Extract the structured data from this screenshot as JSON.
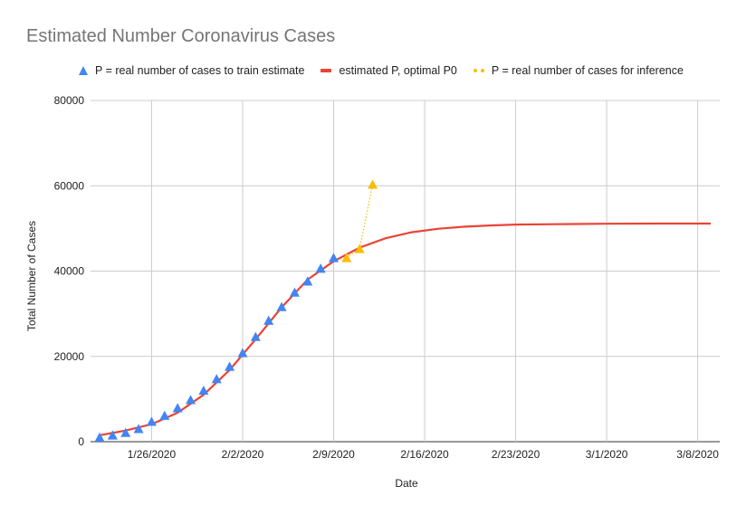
{
  "chart_data": {
    "type": "line",
    "title": "Estimated Number Coronavirus Cases",
    "xlabel": "Date",
    "ylabel": "Total Number of Cases",
    "ylim": [
      0,
      80000
    ],
    "y_ticks": [
      "0",
      "20000",
      "40000",
      "60000",
      "80000"
    ],
    "y_tick_values": [
      0,
      20000,
      40000,
      60000,
      80000
    ],
    "x_tick_labels": [
      "1/26/2020",
      "2/2/2020",
      "2/9/2020",
      "2/16/2020",
      "2/23/2020",
      "3/1/2020",
      "3/8/2020"
    ],
    "x_tick_dates": [
      "2020-01-26",
      "2020-02-02",
      "2020-02-09",
      "2020-02-16",
      "2020-02-23",
      "2020-03-01",
      "2020-03-08"
    ],
    "xlim": [
      "2020-01-22",
      "2020-03-09"
    ],
    "grid": true,
    "legend_position": "top",
    "series": [
      {
        "name": "P = real number of cases to train estimate",
        "style": "markers",
        "marker": "triangle",
        "color": "#4285f4",
        "x": [
          "2020-01-22",
          "2020-01-23",
          "2020-01-24",
          "2020-01-25",
          "2020-01-26",
          "2020-01-27",
          "2020-01-28",
          "2020-01-29",
          "2020-01-30",
          "2020-01-31",
          "2020-02-01",
          "2020-02-02",
          "2020-02-03",
          "2020-02-04",
          "2020-02-05",
          "2020-02-06",
          "2020-02-07",
          "2020-02-08",
          "2020-02-09"
        ],
        "y": [
          1000,
          1500,
          2100,
          3000,
          4700,
          6100,
          7900,
          9800,
          12000,
          14700,
          17600,
          20800,
          24600,
          28400,
          31600,
          35000,
          37600,
          40600,
          43100
        ]
      },
      {
        "name": "estimated P, optimal P0",
        "style": "line",
        "color": "#ea4335",
        "x": [
          "2020-01-22",
          "2020-01-24",
          "2020-01-26",
          "2020-01-28",
          "2020-01-30",
          "2020-02-01",
          "2020-02-03",
          "2020-02-05",
          "2020-02-07",
          "2020-02-09",
          "2020-02-11",
          "2020-02-13",
          "2020-02-15",
          "2020-02-17",
          "2020-02-19",
          "2020-02-21",
          "2020-02-23",
          "2020-02-26",
          "2020-03-01",
          "2020-03-05",
          "2020-03-09"
        ],
        "y": [
          1500,
          2600,
          4100,
          6800,
          11000,
          16800,
          24000,
          31500,
          38000,
          42300,
          45500,
          47700,
          49100,
          49900,
          50400,
          50700,
          50900,
          51000,
          51100,
          51150,
          51150
        ]
      },
      {
        "name": "P = real number of cases for inference",
        "style": "dotted-markers",
        "marker": "triangle",
        "color": "#fbbc04",
        "x": [
          "2020-02-10",
          "2020-02-11",
          "2020-02-12"
        ],
        "y": [
          43100,
          45200,
          60300
        ]
      }
    ]
  }
}
